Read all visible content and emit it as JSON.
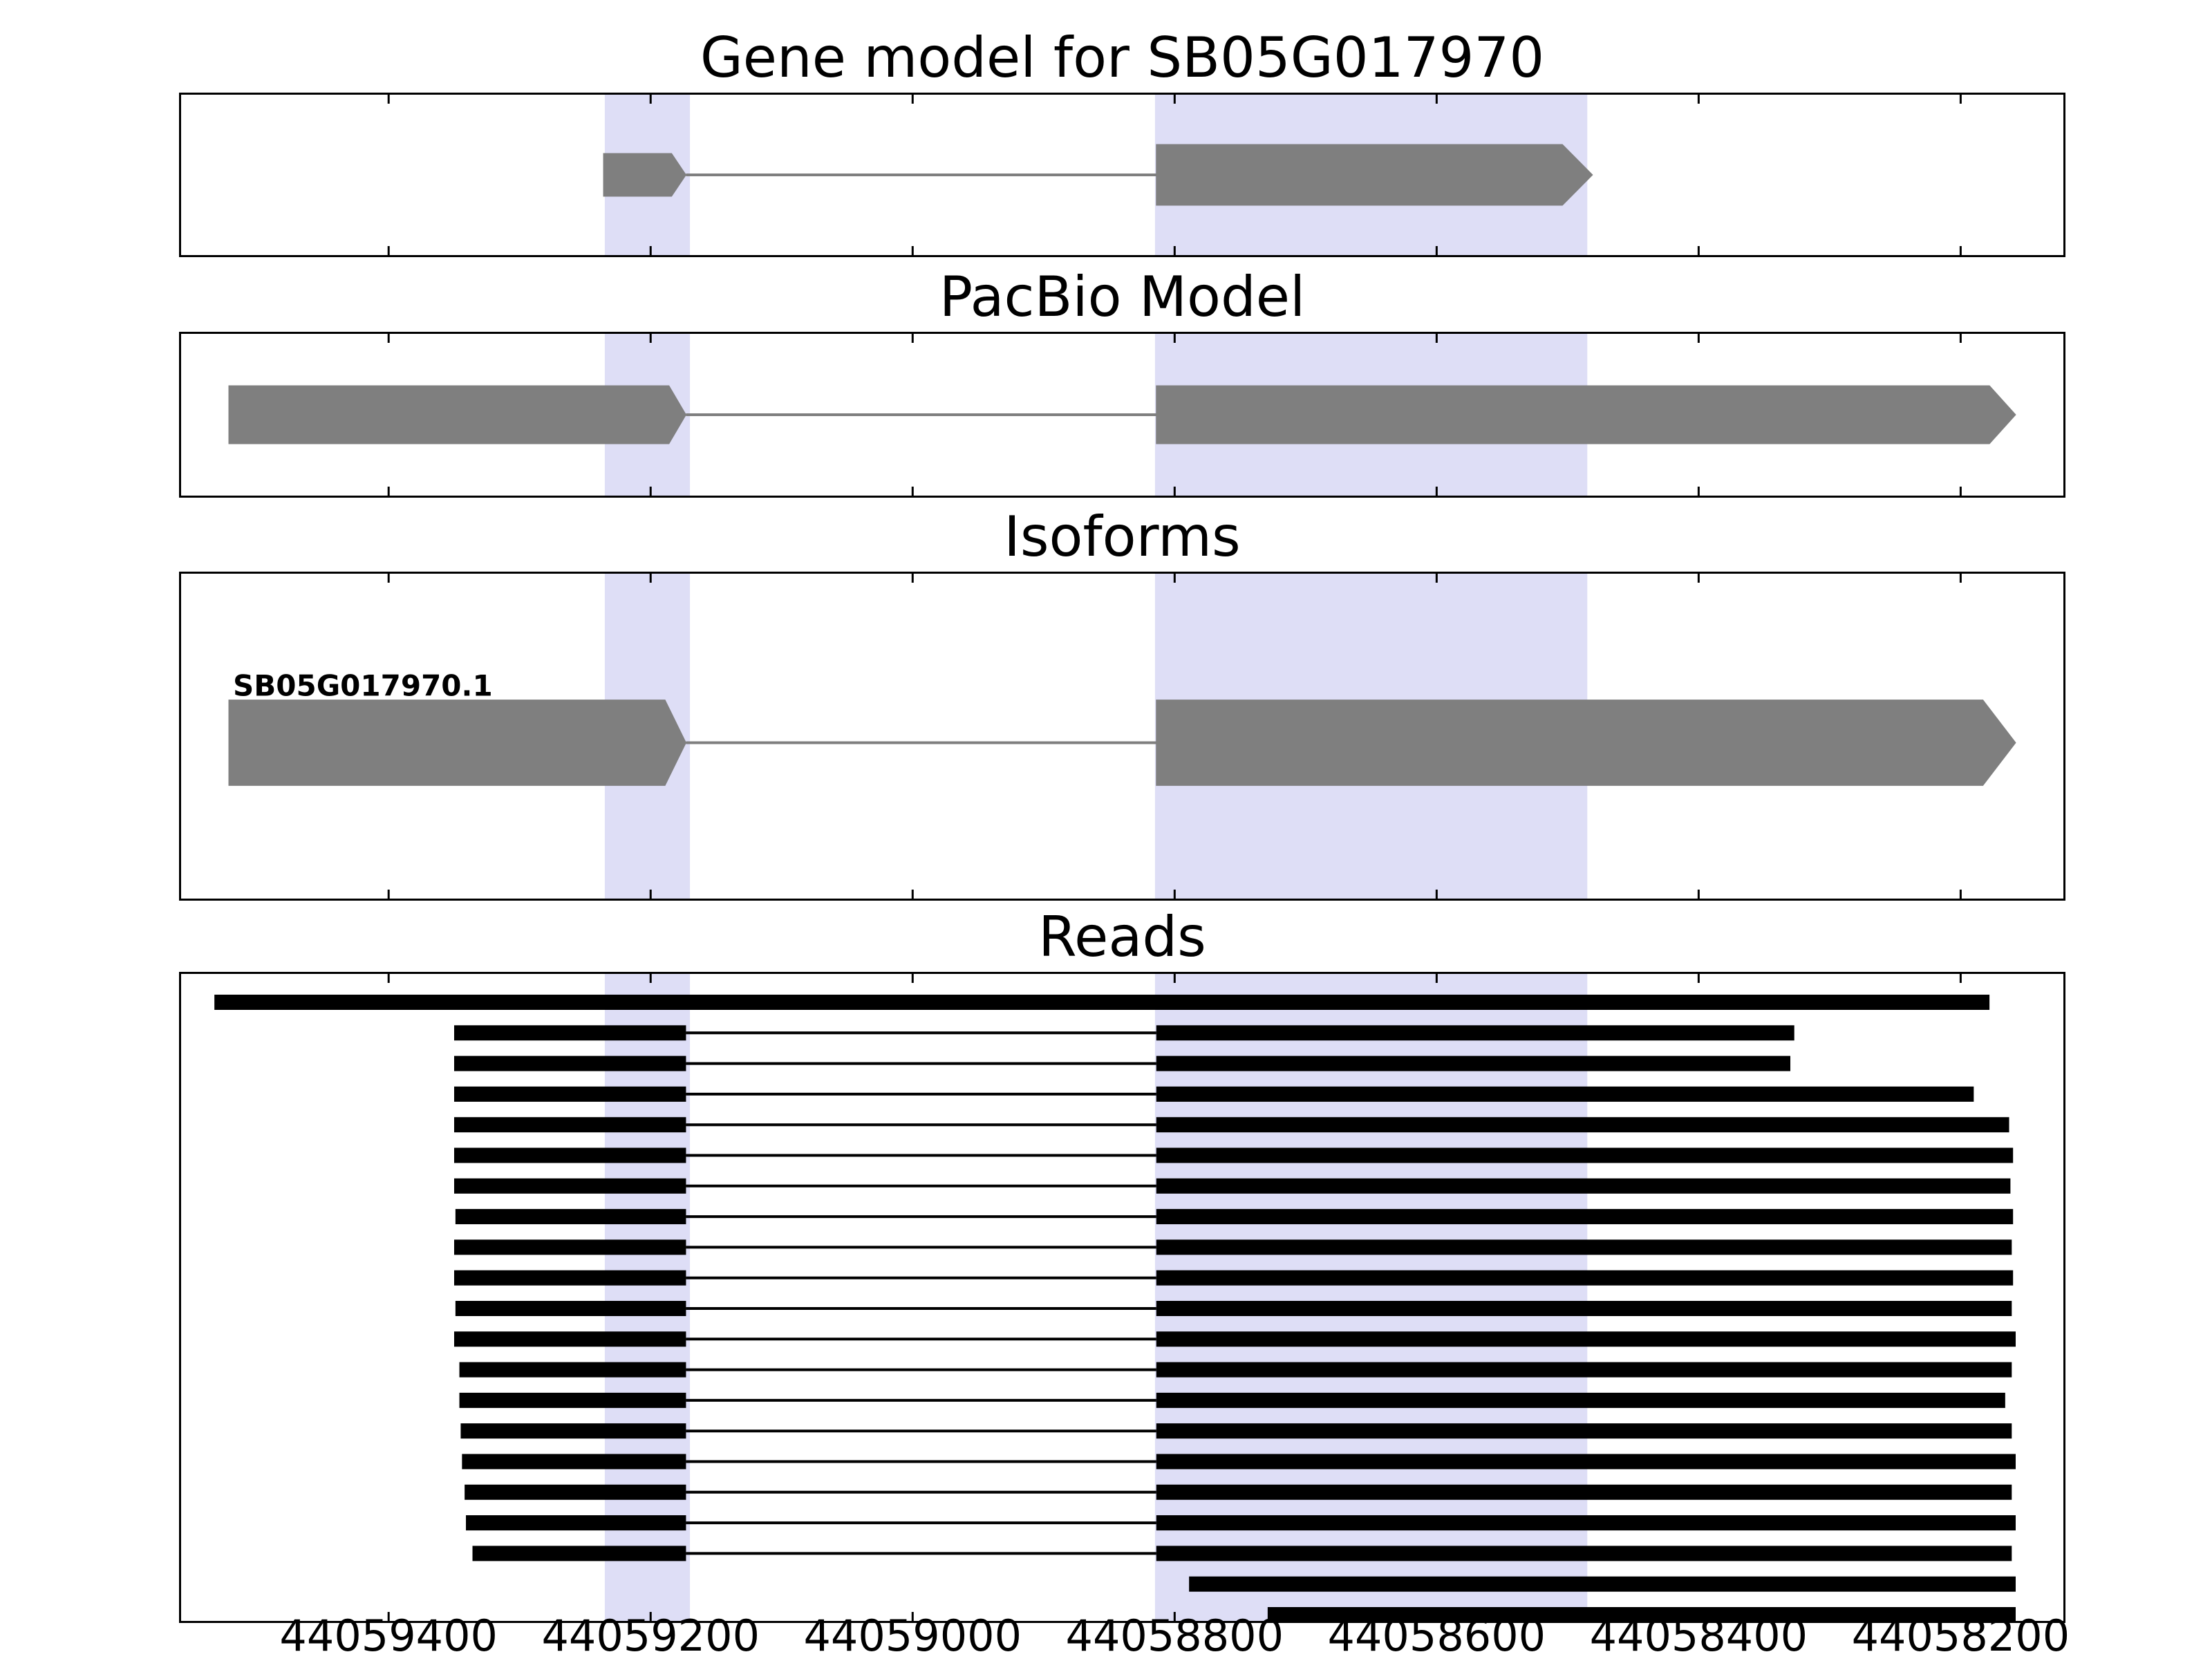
{
  "colors": {
    "background": "#ffffff",
    "gene": "#7f7f7f",
    "read": "#000000",
    "highlight": "#dedef6",
    "border": "#000000"
  },
  "chart_data": {
    "type": "genome-tracks",
    "x_axis": {
      "limits": [
        44059560,
        44058120
      ],
      "reversed": true,
      "tick_values": [
        44059400,
        44059200,
        44059000,
        44058800,
        44058600,
        44058400,
        44058200
      ],
      "tick_labels": [
        "44059400",
        "44059200",
        "44059000",
        "44058800",
        "44058600",
        "44058400",
        "44058200"
      ]
    },
    "highlight_regions": [
      {
        "start": 44059235,
        "end": 44059170
      },
      {
        "start": 44058815,
        "end": 44058485
      }
    ],
    "panels": [
      {
        "id": "gene-model",
        "title": "Gene model for SB05G017970",
        "type": "transcripts",
        "center_frac": 0.5,
        "transcripts": [
          {
            "label": "",
            "exons": [
              {
                "start": 44059236,
                "end": 44059184,
                "tip": 44059173,
                "height_frac": 0.26
              },
              {
                "start": 44058814,
                "end": 44058504,
                "tip": 44058481,
                "height_frac": 0.37
              }
            ]
          }
        ]
      },
      {
        "id": "pacbio-model",
        "title": "PacBio Model",
        "type": "transcripts",
        "center_frac": 0.5,
        "transcripts": [
          {
            "label": "",
            "exons": [
              {
                "start": 44059522,
                "end": 44059186,
                "tip": 44059173,
                "height_frac": 0.35
              },
              {
                "start": 44058814,
                "end": 44058178,
                "tip": 44058158,
                "height_frac": 0.35
              }
            ]
          }
        ]
      },
      {
        "id": "isoforms",
        "title": "Isoforms",
        "type": "transcripts",
        "center_frac": 0.52,
        "transcripts": [
          {
            "label": "SB05G017970.1",
            "exons": [
              {
                "start": 44059522,
                "end": 44059189,
                "tip": 44059173,
                "height_frac": 0.26
              },
              {
                "start": 44058814,
                "end": 44058183,
                "tip": 44058158,
                "height_frac": 0.26
              }
            ]
          }
        ]
      },
      {
        "id": "reads",
        "title": "Reads",
        "type": "reads",
        "reads": [
          {
            "segments": [
              [
                44059533,
                44058178
              ]
            ]
          },
          {
            "segments": [
              [
                44059350,
                44059173
              ],
              [
                44058814,
                44058327
              ]
            ]
          },
          {
            "segments": [
              [
                44059350,
                44059173
              ],
              [
                44058814,
                44058330
              ]
            ]
          },
          {
            "segments": [
              [
                44059350,
                44059173
              ],
              [
                44058814,
                44058190
              ]
            ]
          },
          {
            "segments": [
              [
                44059350,
                44059173
              ],
              [
                44058814,
                44058163
              ]
            ]
          },
          {
            "segments": [
              [
                44059350,
                44059173
              ],
              [
                44058814,
                44058160
              ]
            ]
          },
          {
            "segments": [
              [
                44059350,
                44059173
              ],
              [
                44058814,
                44058162
              ]
            ]
          },
          {
            "segments": [
              [
                44059349,
                44059173
              ],
              [
                44058814,
                44058160
              ]
            ]
          },
          {
            "segments": [
              [
                44059350,
                44059173
              ],
              [
                44058814,
                44058161
              ]
            ]
          },
          {
            "segments": [
              [
                44059350,
                44059173
              ],
              [
                44058814,
                44058160
              ]
            ]
          },
          {
            "segments": [
              [
                44059349,
                44059173
              ],
              [
                44058814,
                44058161
              ]
            ]
          },
          {
            "segments": [
              [
                44059350,
                44059173
              ],
              [
                44058814,
                44058158
              ]
            ]
          },
          {
            "segments": [
              [
                44059346,
                44059173
              ],
              [
                44058814,
                44058161
              ]
            ]
          },
          {
            "segments": [
              [
                44059346,
                44059173
              ],
              [
                44058814,
                44058166
              ]
            ]
          },
          {
            "segments": [
              [
                44059345,
                44059173
              ],
              [
                44058814,
                44058161
              ]
            ]
          },
          {
            "segments": [
              [
                44059344,
                44059173
              ],
              [
                44058814,
                44058158
              ]
            ]
          },
          {
            "segments": [
              [
                44059342,
                44059173
              ],
              [
                44058814,
                44058161
              ]
            ]
          },
          {
            "segments": [
              [
                44059341,
                44059173
              ],
              [
                44058814,
                44058158
              ]
            ]
          },
          {
            "segments": [
              [
                44059336,
                44059173
              ],
              [
                44058814,
                44058161
              ]
            ]
          },
          {
            "segments": [
              [
                44058789,
                44058158
              ]
            ]
          },
          {
            "segments": [
              [
                44058729,
                44058158
              ]
            ]
          }
        ]
      }
    ]
  }
}
